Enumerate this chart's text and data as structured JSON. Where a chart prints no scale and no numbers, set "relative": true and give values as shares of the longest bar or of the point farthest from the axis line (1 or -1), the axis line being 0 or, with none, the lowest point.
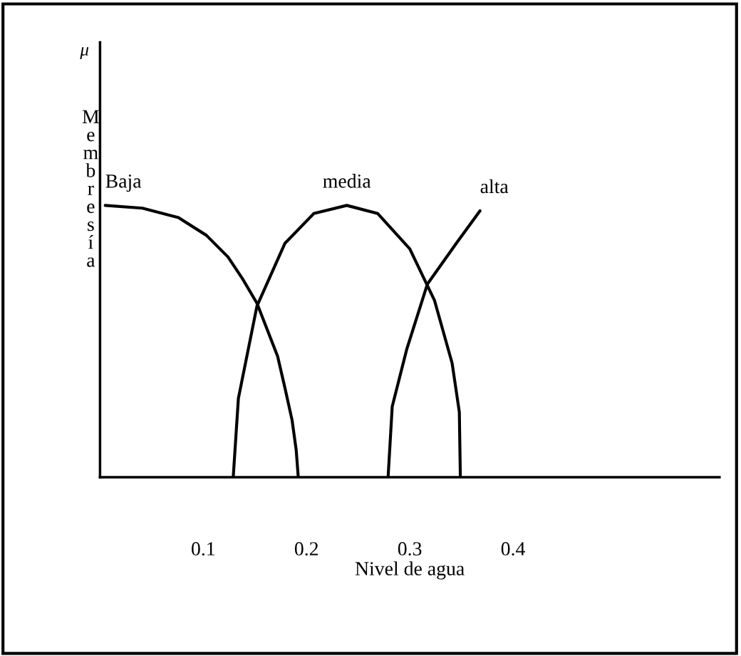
{
  "chart_data": {
    "type": "line",
    "relative": true,
    "xlabel": "Nivel de agua",
    "ylabel": "Membresía",
    "annotations": [
      "μ"
    ],
    "xlim": [
      0,
      0.6
    ],
    "xticks": [
      0.1,
      0.2,
      0.3,
      0.4
    ],
    "grid": false,
    "marker": "none",
    "line_style": "solid",
    "series": [
      {
        "name": "Baja",
        "color": "#000000",
        "x": [
          0.005,
          0.041,
          0.076,
          0.103,
          0.124,
          0.138,
          0.152,
          0.172,
          0.179,
          0.186,
          0.19,
          0.192
        ],
        "values": [
          1,
          0.99,
          0.955,
          0.89,
          0.81,
          0.73,
          0.64,
          0.445,
          0.33,
          0.21,
          0.1,
          0
        ]
      },
      {
        "name": "media",
        "color": "#000000",
        "x": [
          0.129,
          0.134,
          0.152,
          0.179,
          0.207,
          0.239,
          0.269,
          0.3,
          0.324,
          0.341,
          0.348,
          0.349
        ],
        "values": [
          0,
          0.29,
          0.63,
          0.86,
          0.97,
          1,
          0.97,
          0.84,
          0.65,
          0.42,
          0.24,
          0
        ]
      },
      {
        "name": "alta",
        "color": "#000000",
        "x": [
          0.279,
          0.283,
          0.297,
          0.317,
          0.345,
          0.368
        ],
        "values": [
          0,
          0.26,
          0.47,
          0.71,
          0.86,
          0.98
        ]
      }
    ]
  }
}
